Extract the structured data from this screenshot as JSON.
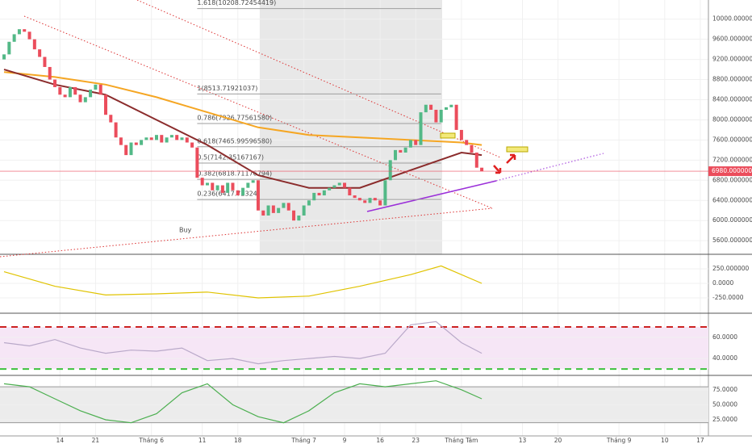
{
  "chart_data": {
    "type": "candlestick",
    "xlim": [
      -0.8,
      138.6
    ],
    "xticks": [
      {
        "value": 11,
        "label": "14"
      },
      {
        "value": 18,
        "label": "21"
      },
      {
        "value": 29,
        "label": "Tháng 6"
      },
      {
        "value": 39,
        "label": "11"
      },
      {
        "value": 46,
        "label": "18"
      },
      {
        "value": 59,
        "label": "Tháng 7"
      },
      {
        "value": 67,
        "label": "9"
      },
      {
        "value": 74,
        "label": "16"
      },
      {
        "value": 81,
        "label": "23"
      },
      {
        "value": 90,
        "label": "Tháng Tám"
      },
      {
        "value": 102,
        "label": "13"
      },
      {
        "value": 109,
        "label": "20"
      },
      {
        "value": 121,
        "label": "Tháng 9"
      },
      {
        "value": 130,
        "label": "10"
      },
      {
        "value": 137,
        "label": "17"
      }
    ],
    "ylim": [
      5330,
      10380
    ],
    "yticks": [
      {
        "value": 10000,
        "label": "10000.00000000"
      },
      {
        "value": 9600,
        "label": "9600.00000000"
      },
      {
        "value": 9200,
        "label": "9200.00000000"
      },
      {
        "value": 8800,
        "label": "8800.00000000"
      },
      {
        "value": 8400,
        "label": "8400.00000000"
      },
      {
        "value": 8000,
        "label": "8000.00000000"
      },
      {
        "value": 7600,
        "label": "7600.00000000"
      },
      {
        "value": 7200,
        "label": "7200.00000000"
      },
      {
        "value": 6800,
        "label": "6800.00000000"
      },
      {
        "value": 6400,
        "label": "6400.00000000"
      },
      {
        "value": 6000,
        "label": "6000.00000000"
      },
      {
        "value": 5600,
        "label": "5600.00000000"
      }
    ],
    "up_color": "#53b987",
    "down_color": "#eb4d5c",
    "candles": {
      "open": [
        9200,
        9300,
        9550,
        9700,
        9800,
        9750,
        9600,
        9400,
        9250,
        9050,
        8800,
        8650,
        8500,
        8450,
        8650,
        8500,
        8350,
        8450,
        8600,
        8700,
        8500,
        8100,
        7950,
        7650,
        7500,
        7300,
        7550,
        7500,
        7600,
        7650,
        7600,
        7700,
        7550,
        7650,
        7700,
        7600,
        7650,
        7550,
        7450,
        6850,
        6700,
        6750,
        6600,
        6700,
        6550,
        6750,
        6600,
        6500,
        6650,
        6750,
        6800,
        6200,
        6100,
        6300,
        6150,
        6250,
        6350,
        6200,
        6000,
        6100,
        6300,
        6400,
        6550,
        6500,
        6600,
        6650,
        6700,
        6750,
        6650,
        6500,
        6450,
        6400,
        6350,
        6450,
        6400,
        6300,
        6800,
        7200,
        7400,
        7350,
        7450,
        7600,
        7500,
        8150,
        8300,
        8200,
        7950,
        8200,
        8250,
        8300,
        7800,
        7600,
        7500,
        7350,
        7050
      ],
      "close": [
        9300,
        9550,
        9700,
        9800,
        9750,
        9600,
        9400,
        9250,
        9050,
        8800,
        8650,
        8500,
        8450,
        8650,
        8500,
        8350,
        8450,
        8600,
        8700,
        8500,
        8100,
        7950,
        7650,
        7500,
        7300,
        7550,
        7500,
        7600,
        7650,
        7600,
        7700,
        7550,
        7650,
        7700,
        7600,
        7650,
        7550,
        7450,
        6850,
        6700,
        6750,
        6600,
        6700,
        6550,
        6750,
        6600,
        6500,
        6650,
        6750,
        6800,
        6200,
        6100,
        6300,
        6150,
        6250,
        6350,
        6200,
        6000,
        6100,
        6300,
        6400,
        6550,
        6500,
        6600,
        6650,
        6700,
        6750,
        6650,
        6500,
        6450,
        6400,
        6350,
        6450,
        6400,
        6300,
        6800,
        7200,
        7400,
        7350,
        7450,
        7600,
        7500,
        8150,
        8300,
        8200,
        7950,
        8200,
        8250,
        8300,
        7800,
        7600,
        7500,
        7350,
        7050,
        6980
      ]
    },
    "highlight_range": [
      50.3,
      86.2
    ],
    "moving_averages": [
      {
        "color": "#f5a623",
        "x": [
          0,
          10,
          20,
          30,
          40,
          50,
          60,
          70,
          80,
          90,
          94
        ],
        "values": [
          8950,
          8850,
          8700,
          8450,
          8150,
          7850,
          7700,
          7650,
          7600,
          7550,
          7500
        ]
      },
      {
        "color": "#8b2c2c",
        "x": [
          0,
          10,
          20,
          30,
          40,
          50,
          60,
          70,
          80,
          90,
          94
        ],
        "values": [
          9000,
          8700,
          8500,
          8000,
          7500,
          6900,
          6650,
          6650,
          7000,
          7350,
          7300
        ]
      }
    ],
    "fib_levels": [
      {
        "value": 10208.72454419,
        "label": "1.618(10208.72454419)"
      },
      {
        "value": 8513.71921037,
        "label": "1(8513.71921037)"
      },
      {
        "value": 7926.7756158,
        "label": "0.786(7926.77561580)"
      },
      {
        "value": 7465.9959658,
        "label": "0.618(7465.99596580)"
      },
      {
        "value": 7142.35167167,
        "label": "0.5(7142.35167167)"
      },
      {
        "value": 6818.71176794,
        "label": "0.382(6818.71176794)"
      },
      {
        "value": 6417.7232,
        "label": "0.236(6417.72324)"
      }
    ],
    "fib_x": [
      38,
      86
    ],
    "last_price": {
      "value": 6980,
      "label": "6980.00000000"
    },
    "buy_label": "Buy",
    "panes": [
      {
        "ylim": [
          -514,
          500
        ],
        "yticks": [
          {
            "value": 250,
            "label": "250.000000"
          },
          {
            "value": 0,
            "label": "0.0000"
          },
          {
            "value": -250,
            "label": "-250.0000"
          }
        ],
        "bands": [],
        "lines": [
          {
            "color": "#e0c300",
            "x": [
              0,
              10,
              20,
              30,
              40,
              50,
              60,
              70,
              80,
              86,
              94
            ],
            "values": [
              200,
              -50,
              -200,
              -180,
              -150,
              -250,
              -220,
              -50,
              150,
              300,
              0
            ]
          }
        ]
      },
      {
        "ylim": [
          24,
          83
        ],
        "yticks": [
          {
            "value": 60,
            "label": "60.0000"
          },
          {
            "value": 40,
            "label": "40.0000"
          }
        ],
        "bands": [
          70,
          30
        ],
        "lines": [
          {
            "color": "#b9a9c9",
            "x": [
              0,
              5,
              10,
              15,
              20,
              25,
              30,
              35,
              40,
              45,
              50,
              55,
              60,
              65,
              70,
              75,
              80,
              85,
              90,
              94
            ],
            "values": [
              55,
              52,
              58,
              50,
              45,
              48,
              47,
              50,
              38,
              40,
              35,
              38,
              40,
              42,
              40,
              45,
              72,
              75,
              55,
              45
            ]
          }
        ]
      },
      {
        "ylim": [
          -2,
          99
        ],
        "yticks": [
          {
            "value": 75,
            "label": "75.0000"
          },
          {
            "value": 50,
            "label": "50.0000"
          },
          {
            "value": 25,
            "label": "25.0000"
          }
        ],
        "bands": [
          80,
          20
        ],
        "lines": [
          {
            "color": "#4caf50",
            "x": [
              0,
              5,
              10,
              15,
              20,
              25,
              30,
              35,
              40,
              45,
              50,
              55,
              60,
              65,
              70,
              75,
              80,
              85,
              90,
              94
            ],
            "values": [
              85,
              80,
              60,
              40,
              25,
              20,
              35,
              70,
              85,
              50,
              30,
              20,
              40,
              70,
              85,
              80,
              85,
              90,
              75,
              60
            ]
          }
        ]
      }
    ]
  }
}
